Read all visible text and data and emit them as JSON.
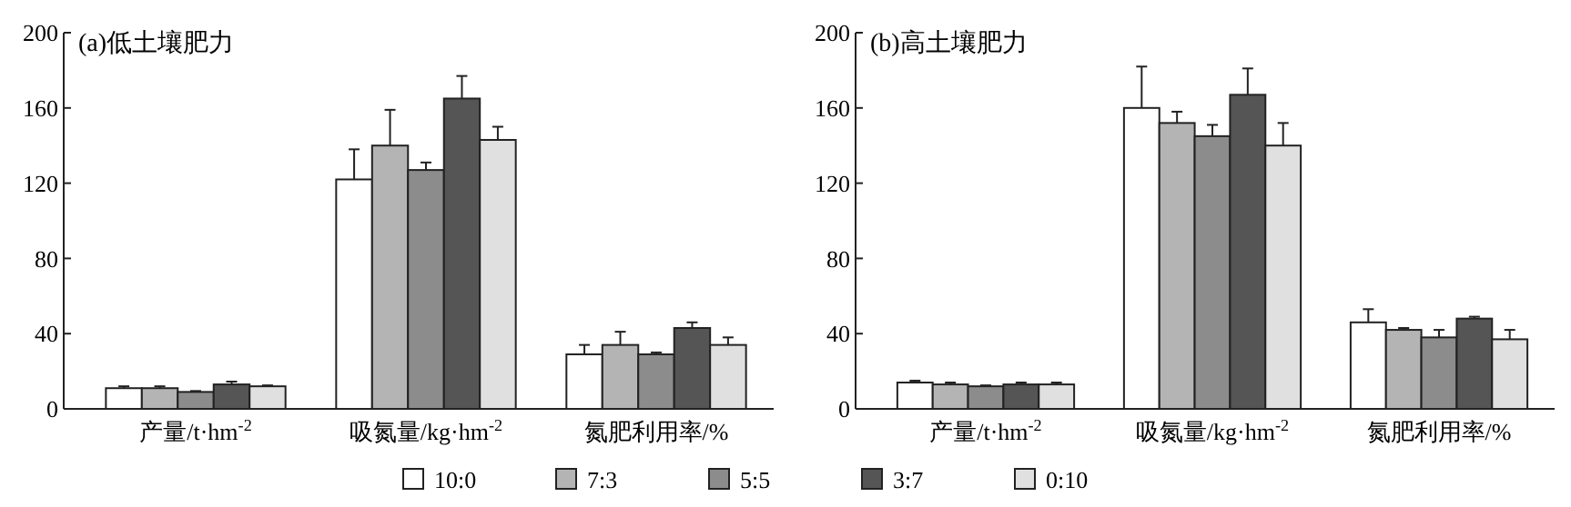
{
  "chart_data": [
    {
      "type": "bar",
      "title": "(a)低土壤肥力",
      "categories": [
        "产量/t·hm$^{-2}$",
        "吸氮量/kg·hm$^{-2}$",
        "氮肥利用率/%"
      ],
      "ylim": [
        0,
        200
      ],
      "yticks": [
        0,
        40,
        80,
        120,
        160,
        200
      ],
      "legend": "bottom",
      "series": [
        {
          "name": "10:0",
          "color": "#ffffff",
          "values": [
            11,
            122,
            29
          ],
          "errors": [
            1,
            16,
            5
          ]
        },
        {
          "name": "7:3",
          "color": "#b4b4b4",
          "values": [
            11,
            140,
            34
          ],
          "errors": [
            1,
            19,
            7
          ]
        },
        {
          "name": "5:5",
          "color": "#8c8c8c",
          "values": [
            9,
            127,
            29
          ],
          "errors": [
            0.5,
            4,
            1
          ]
        },
        {
          "name": "3:7",
          "color": "#555555",
          "values": [
            13,
            165,
            43
          ],
          "errors": [
            1.5,
            12,
            3
          ]
        },
        {
          "name": "0:10",
          "color": "#e0e0e0",
          "values": [
            12,
            143,
            34
          ],
          "errors": [
            0.5,
            7,
            4
          ]
        }
      ]
    },
    {
      "type": "bar",
      "title": "(b)高土壤肥力",
      "categories": [
        "产量/t·hm$^{-2}$",
        "吸氮量/kg·hm$^{-2}$",
        "氮肥利用率/%"
      ],
      "ylim": [
        0,
        200
      ],
      "yticks": [
        0,
        40,
        80,
        120,
        160,
        200
      ],
      "series": [
        {
          "color": "#ffffff",
          "values": [
            14,
            160,
            46
          ],
          "errors": [
            1,
            22,
            7
          ]
        },
        {
          "color": "#b4b4b4",
          "values": [
            13,
            152,
            42
          ],
          "errors": [
            1,
            6,
            1
          ]
        },
        {
          "color": "#8c8c8c",
          "values": [
            12,
            145,
            38
          ],
          "errors": [
            0.5,
            6,
            4
          ]
        },
        {
          "color": "#555555",
          "values": [
            13,
            167,
            48
          ],
          "errors": [
            1,
            14,
            1
          ]
        },
        {
          "color": "#e0e0e0",
          "values": [
            13,
            140,
            37
          ],
          "errors": [
            1,
            12,
            5
          ]
        }
      ]
    }
  ]
}
